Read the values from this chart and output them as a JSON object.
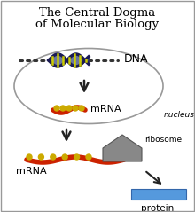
{
  "title_line1": "The Central Dogma",
  "title_line2": "of Molecular Biology",
  "title_fontsize": 9.5,
  "bg_color": "#ffffff",
  "border_color": "#999999",
  "nucleus_label": "nucleus",
  "dna_label": "DNA",
  "mrna_label_inside": "mRNA",
  "mrna_label_outside": "mRNA",
  "ribosome_label": "ribosome",
  "protein_label": "protein",
  "arrow_color": "#222222",
  "protein_color": "#5599dd",
  "ribosome_color": "#888888",
  "dna_dark": "#1a1a55",
  "mrna_red": "#cc2200",
  "mrna_yellow": "#ccaa00",
  "dot_color": "#333333"
}
